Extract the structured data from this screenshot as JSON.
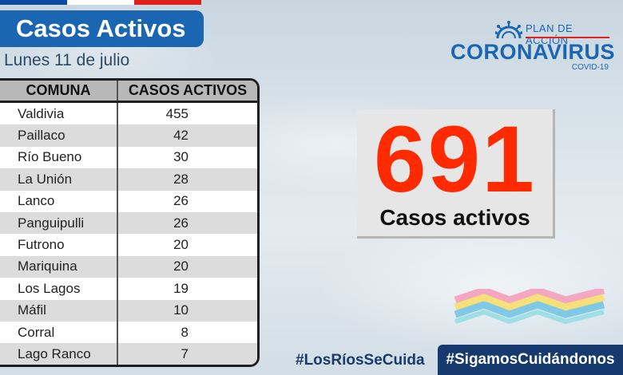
{
  "header": {
    "title": "Casos Activos",
    "date": "Lunes 11 de julio"
  },
  "logo": {
    "plan": "PLAN DE ACCIÓN",
    "brand": "CORONAVIRUS",
    "sub": "COVID-19"
  },
  "table": {
    "headers": [
      "COMUNA",
      "CASOS ACTIVOS"
    ],
    "rows": [
      {
        "comuna": "Valdivia",
        "casos": "455"
      },
      {
        "comuna": "Paillaco",
        "casos": "42"
      },
      {
        "comuna": "Río Bueno",
        "casos": "30"
      },
      {
        "comuna": "La Unión",
        "casos": "28"
      },
      {
        "comuna": "Lanco",
        "casos": "26"
      },
      {
        "comuna": "Panguipulli",
        "casos": "26"
      },
      {
        "comuna": "Futrono",
        "casos": "20"
      },
      {
        "comuna": "Mariquina",
        "casos": "20"
      },
      {
        "comuna": "Los Lagos",
        "casos": "19"
      },
      {
        "comuna": "Máfil",
        "casos": "10"
      },
      {
        "comuna": "Corral",
        "casos": "8"
      },
      {
        "comuna": "Lago Ranco",
        "casos": "7"
      }
    ]
  },
  "summary": {
    "total": "691",
    "caption": "Casos activos"
  },
  "hashtags": {
    "primary": "#LosRíosSeCuida",
    "secondary": "#SigamosCuidándonos"
  },
  "colors": {
    "brand_blue": "#1a66b3",
    "highlight_red": "#ff2a00",
    "flag_red": "#e0201b",
    "navy": "#163a6e"
  }
}
